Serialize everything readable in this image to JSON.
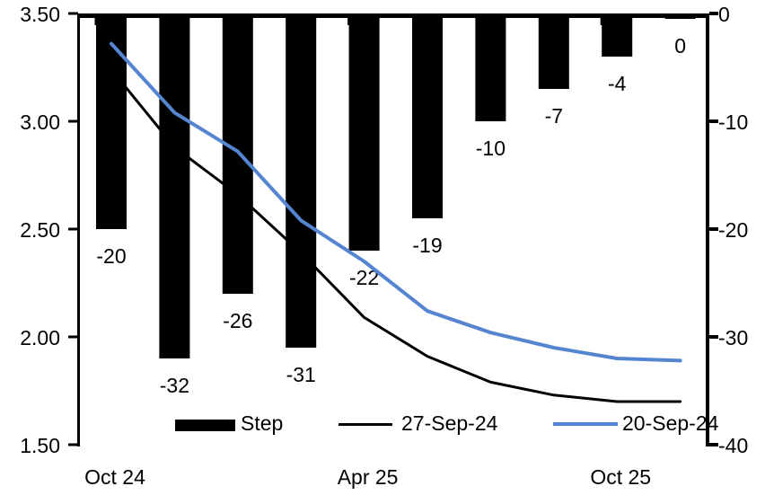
{
  "chart_data": {
    "type": "combo-bar-line",
    "title": "",
    "categories": [
      "Oct 24",
      "",
      "",
      "",
      "Apr 25",
      "",
      "",
      "",
      "Oct 25",
      ""
    ],
    "x_axis": {
      "labels": [
        {
          "text": "Oct 24",
          "category_index": 0
        },
        {
          "text": "Apr 25",
          "category_index": 4
        },
        {
          "text": "Oct 25",
          "category_index": 8
        }
      ],
      "boundary_tick_indices": [
        0,
        4,
        8
      ]
    },
    "bars": {
      "name": "Step",
      "axis": "right",
      "color": "#000000",
      "values": [
        -20,
        -32,
        -26,
        -31,
        -22,
        -19,
        -10,
        -7,
        -4,
        0
      ],
      "labels": [
        "-20",
        "-32",
        "-26",
        "-31",
        "-22",
        "-19",
        "-10",
        "-7",
        "-4",
        "0"
      ]
    },
    "series": [
      {
        "name": "27-Sep-24",
        "axis": "left",
        "color": "#000000",
        "stroke_width": 3,
        "values": [
          3.24,
          2.88,
          2.66,
          2.39,
          2.09,
          1.91,
          1.79,
          1.73,
          1.7,
          1.7
        ]
      },
      {
        "name": "20-Sep-24",
        "axis": "left",
        "color": "#5585D0",
        "stroke_width": 4,
        "values": [
          3.36,
          3.04,
          2.86,
          2.54,
          2.35,
          2.12,
          2.02,
          1.95,
          1.9,
          1.89
        ]
      }
    ],
    "left_axis": {
      "min": 1.5,
      "max": 3.5,
      "tick_labels": [
        "3.50",
        "3.00",
        "2.50",
        "2.00",
        "1.50"
      ],
      "tick_values": [
        3.5,
        3.0,
        2.5,
        2.0,
        1.5
      ]
    },
    "right_axis": {
      "min": -40,
      "max": 0,
      "tick_labels": [
        "0",
        "-10",
        "-20",
        "-30",
        "-40"
      ],
      "tick_values": [
        0,
        -10,
        -20,
        -30,
        -40
      ]
    },
    "legend": [
      {
        "label": "Step",
        "type": "bar",
        "color": "#000000"
      },
      {
        "label": "27-Sep-24",
        "type": "line",
        "color": "#000000"
      },
      {
        "label": "20-Sep-24",
        "type": "line",
        "color": "#5585D0"
      }
    ],
    "grid": false,
    "legend_position": "bottom",
    "background": "#FFFFFF"
  }
}
